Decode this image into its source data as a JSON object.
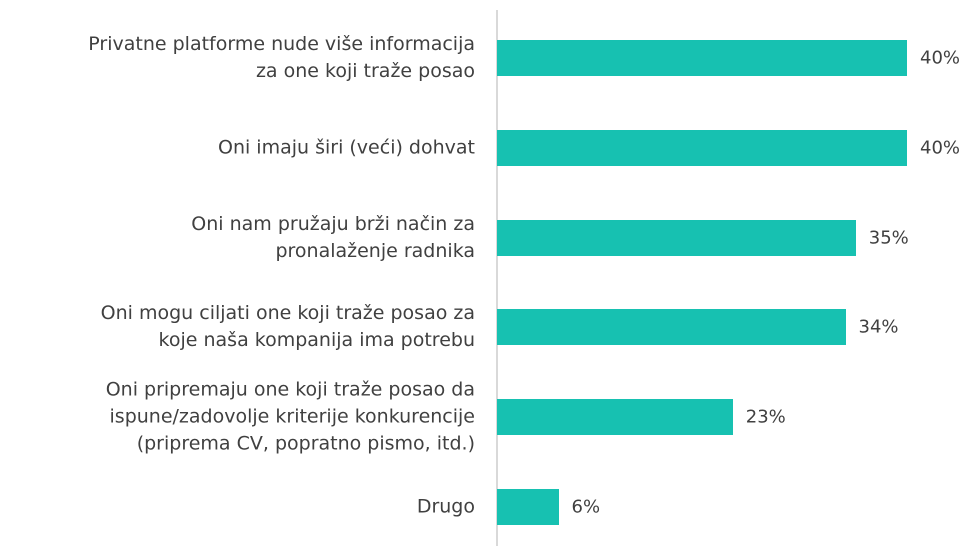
{
  "chart_data": {
    "type": "bar",
    "orientation": "horizontal",
    "categories": [
      "Privatne platforme nude više informacija\nza one koji traže posao",
      "Oni imaju širi (veći) dohvat",
      "Oni nam pružaju brži način za\npronalaženje radnika",
      "Oni mogu ciljati one koji traže posao za\nkoje naša kompanija ima potrebu",
      "Oni pripremaju one koji traže posao da\nispune/zadovolje kriterije konkurencije\n(priprema CV, popratno pismo, itd.)",
      "Drugo"
    ],
    "values": [
      40,
      40,
      35,
      34,
      23,
      6
    ],
    "value_labels": [
      "40%",
      "40%",
      "35%",
      "34%",
      "23%",
      "6%"
    ],
    "color": "#17c1b1"
  }
}
